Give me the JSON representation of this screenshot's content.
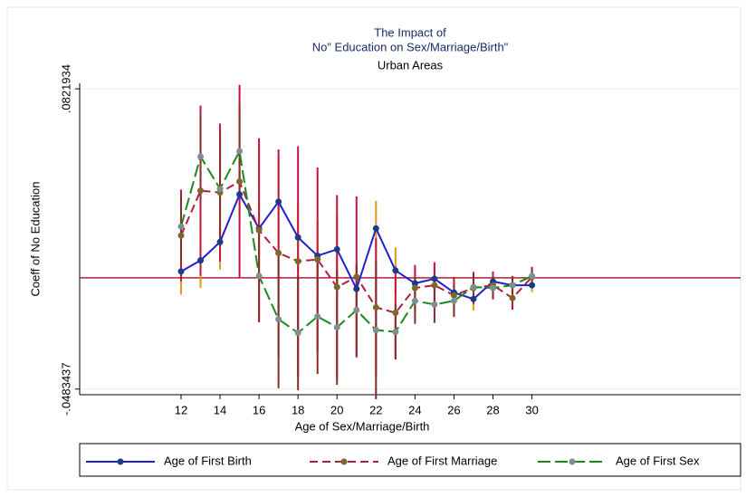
{
  "chart_data": {
    "type": "line",
    "title": [
      "The Impact of",
      "No\" Education on Sex/Marriage/Birth\""
    ],
    "subtitle": "Urban Areas",
    "x_label": "Age of Sex/Marriage/Birth",
    "y_label": "Coeff of No Education",
    "x": [
      12,
      13,
      14,
      15,
      16,
      17,
      18,
      19,
      20,
      21,
      22,
      23,
      24,
      25,
      26,
      27,
      28,
      29,
      30
    ],
    "xlim": [
      6.8,
      40.7
    ],
    "xticks": [
      12,
      14,
      16,
      18,
      20,
      22,
      24,
      26,
      28,
      30
    ],
    "ylim": [
      -0.0508,
      0.0846
    ],
    "yticks": [
      {
        "value": -0.0483437,
        "label": "-.0483437"
      },
      {
        "value": 0.0821934,
        "label": ".0821934"
      }
    ],
    "yline": 0,
    "yline_color": "#b01e3c",
    "grid": true,
    "legend": "bottom",
    "series": [
      {
        "name": "Age of First Birth",
        "color": "#1f1fd0",
        "marker_color": "#1a3a8a",
        "dash": "solid",
        "ci_color": "#e09a1a",
        "values": [
          0.0028,
          0.0076,
          0.0156,
          0.0363,
          0.0215,
          0.0331,
          0.0176,
          0.0096,
          0.0124,
          -0.0048,
          0.0215,
          0.0032,
          -0.0024,
          -0.0004,
          -0.0064,
          -0.0092,
          -0.0016,
          -0.0032,
          -0.0032
        ],
        "errors": [
          0.01,
          0.012,
          0.012,
          0.012,
          0.012,
          0.02,
          0.015,
          0.015,
          0.015,
          0.01,
          0.012,
          0.01,
          0.006,
          0.006,
          0.005,
          0.005,
          0.004,
          0.004,
          0.003
        ]
      },
      {
        "name": "Age of First Marriage",
        "color": "#b01e3c",
        "marker_color": "#7a6a2a",
        "dash": "9 5",
        "ci_color": "#c0143c",
        "values": [
          0.0184,
          0.0379,
          0.0371,
          0.0419,
          0.0207,
          0.0108,
          0.0072,
          0.008,
          -0.004,
          0.0004,
          -0.0128,
          -0.0152,
          -0.0044,
          -0.0032,
          -0.0076,
          -0.0044,
          -0.0032,
          -0.0088,
          0.0004
        ],
        "errors": [
          0.02,
          0.037,
          0.03,
          0.042,
          0.04,
          0.045,
          0.05,
          0.04,
          0.04,
          0.035,
          0.03,
          0.02,
          0.01,
          0.01,
          0.008,
          0.007,
          0.006,
          0.005,
          0.004
        ]
      },
      {
        "name": "Age of First Sex",
        "color": "#1a8a1a",
        "marker_color": "#7f8f8f",
        "dash": "14 5",
        "ci_color": "#8a2a2a",
        "values": [
          0.0223,
          0.0527,
          0.0387,
          0.0551,
          0.0008,
          -0.018,
          -0.0239,
          -0.0168,
          -0.0215,
          -0.014,
          -0.0227,
          -0.0235,
          -0.01,
          -0.0116,
          -0.01,
          -0.004,
          -0.0044,
          -0.0032,
          0.0008
        ],
        "errors": [
          0.015,
          0.02,
          0.025,
          0.02,
          0.02,
          0.03,
          0.025,
          0.025,
          0.025,
          0.02,
          0.03,
          0.012,
          0.01,
          0.008,
          0.007,
          0.006,
          0.005,
          0.004,
          0.004
        ]
      }
    ]
  }
}
